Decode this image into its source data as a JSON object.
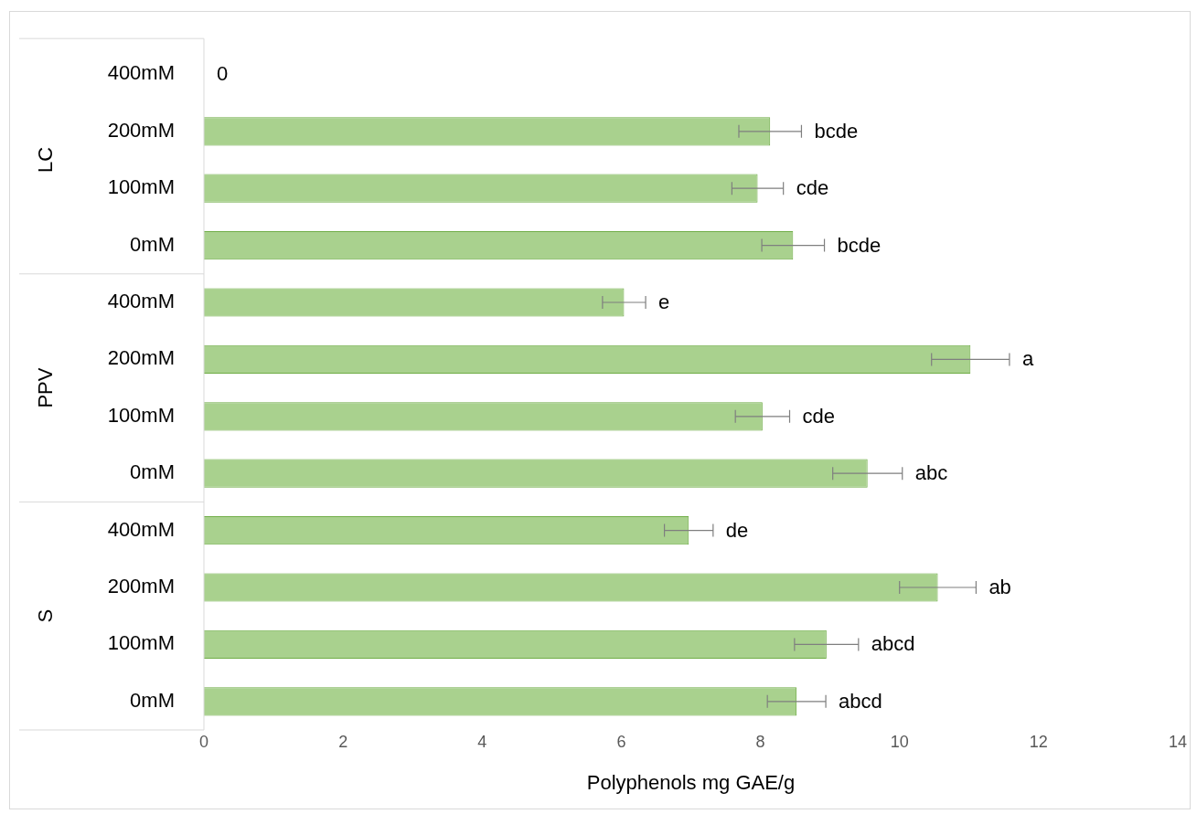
{
  "chart_data": {
    "type": "bar",
    "orientation": "horizontal",
    "xlabel": "Polyphenols mg GAE/g",
    "categories": [
      "400mM",
      "200mM",
      "100mM",
      "0mM",
      "400mM",
      "200mM",
      "100mM",
      "0mM",
      "400mM",
      "200mM",
      "100mM",
      "0mM"
    ],
    "values": [
      0,
      8.14,
      7.96,
      8.47,
      6.04,
      11.02,
      8.03,
      9.54,
      6.97,
      10.55,
      8.95,
      8.52
    ],
    "errors": [
      null,
      0.45,
      0.37,
      0.45,
      0.31,
      0.56,
      0.39,
      0.5,
      0.35,
      0.55,
      0.46,
      0.42
    ],
    "value_labels": [
      "0",
      "bcde",
      "cde",
      "bcde",
      "e",
      "a",
      "cde",
      "abc",
      "de",
      "ab",
      "abcd",
      "abcd"
    ],
    "color": "#a9d18e",
    "annotations": [
      "LC",
      "PPV",
      "S"
    ],
    "xlim": [
      0,
      14
    ],
    "xticks": [
      0,
      2,
      4,
      6,
      8,
      10,
      12,
      14
    ],
    "grid": false,
    "legend": false
  }
}
